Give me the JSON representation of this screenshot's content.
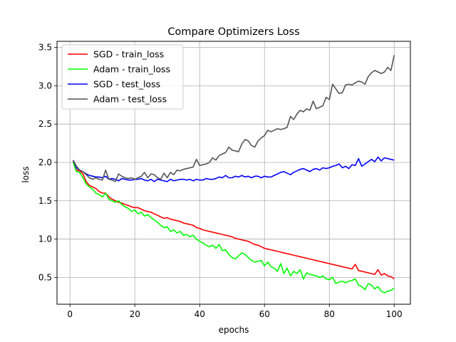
{
  "chart_data": {
    "type": "line",
    "title": "Compare Optimizers Loss",
    "xlabel": "epochs",
    "ylabel": "loss",
    "xlim": [
      -4,
      105
    ],
    "ylim": [
      0.15,
      3.58
    ],
    "xticks": [
      0,
      20,
      40,
      60,
      80,
      100
    ],
    "xtick_labels": [
      "0",
      "20",
      "40",
      "60",
      "80",
      "100"
    ],
    "yticks": [
      0.5,
      1.0,
      1.5,
      2.0,
      2.5,
      3.0,
      3.5
    ],
    "ytick_labels": [
      "0.5",
      "1.0",
      "1.5",
      "2.0",
      "2.5",
      "3.0",
      "3.5"
    ],
    "grid": true,
    "legend_position": "top-left",
    "x_start": 1,
    "x_end": 100,
    "series": [
      {
        "name": "SGD - train_loss",
        "color": "#ff0000",
        "values": [
          2.02,
          1.9,
          1.89,
          1.85,
          1.75,
          1.7,
          1.68,
          1.66,
          1.62,
          1.6,
          1.6,
          1.55,
          1.52,
          1.5,
          1.48,
          1.47,
          1.45,
          1.44,
          1.42,
          1.41,
          1.41,
          1.39,
          1.37,
          1.36,
          1.35,
          1.33,
          1.31,
          1.29,
          1.27,
          1.28,
          1.26,
          1.25,
          1.24,
          1.23,
          1.21,
          1.2,
          1.19,
          1.18,
          1.15,
          1.14,
          1.12,
          1.11,
          1.1,
          1.09,
          1.08,
          1.07,
          1.06,
          1.05,
          1.04,
          1.03,
          1.01,
          1.0,
          0.99,
          0.98,
          0.97,
          0.95,
          0.93,
          0.92,
          0.9,
          0.88,
          0.87,
          0.86,
          0.85,
          0.84,
          0.83,
          0.82,
          0.81,
          0.8,
          0.79,
          0.78,
          0.77,
          0.76,
          0.75,
          0.74,
          0.73,
          0.72,
          0.71,
          0.7,
          0.69,
          0.68,
          0.67,
          0.66,
          0.65,
          0.64,
          0.63,
          0.62,
          0.61,
          0.67,
          0.59,
          0.58,
          0.57,
          0.56,
          0.55,
          0.54,
          0.6,
          0.53,
          0.55,
          0.52,
          0.51,
          0.48
        ]
      },
      {
        "name": "Adam - train_loss",
        "color": "#00ff00",
        "values": [
          2.0,
          1.88,
          1.87,
          1.8,
          1.72,
          1.68,
          1.65,
          1.6,
          1.58,
          1.55,
          1.6,
          1.52,
          1.5,
          1.48,
          1.5,
          1.45,
          1.42,
          1.4,
          1.36,
          1.38,
          1.33,
          1.35,
          1.3,
          1.32,
          1.28,
          1.25,
          1.22,
          1.18,
          1.15,
          1.16,
          1.1,
          1.12,
          1.08,
          1.1,
          1.05,
          1.06,
          1.03,
          1.05,
          1.0,
          0.97,
          0.95,
          0.92,
          0.9,
          0.92,
          0.88,
          0.93,
          0.85,
          0.86,
          0.8,
          0.76,
          0.74,
          0.78,
          0.82,
          0.8,
          0.76,
          0.72,
          0.7,
          0.71,
          0.72,
          0.65,
          0.7,
          0.64,
          0.62,
          0.58,
          0.68,
          0.55,
          0.62,
          0.52,
          0.58,
          0.55,
          0.6,
          0.48,
          0.56,
          0.54,
          0.53,
          0.52,
          0.5,
          0.52,
          0.48,
          0.47,
          0.5,
          0.42,
          0.44,
          0.45,
          0.43,
          0.45,
          0.46,
          0.48,
          0.4,
          0.38,
          0.34,
          0.42,
          0.4,
          0.35,
          0.38,
          0.32,
          0.3,
          0.32,
          0.33,
          0.36
        ]
      },
      {
        "name": "SGD - test_loss",
        "color": "#0000ff",
        "values": [
          2.03,
          1.93,
          1.9,
          1.88,
          1.85,
          1.83,
          1.82,
          1.81,
          1.81,
          1.8,
          1.82,
          1.78,
          1.79,
          1.78,
          1.76,
          1.79,
          1.78,
          1.77,
          1.77,
          1.78,
          1.78,
          1.79,
          1.77,
          1.76,
          1.78,
          1.75,
          1.78,
          1.77,
          1.76,
          1.75,
          1.78,
          1.76,
          1.77,
          1.78,
          1.78,
          1.77,
          1.78,
          1.76,
          1.78,
          1.77,
          1.77,
          1.79,
          1.78,
          1.78,
          1.79,
          1.81,
          1.8,
          1.83,
          1.8,
          1.8,
          1.82,
          1.81,
          1.83,
          1.81,
          1.82,
          1.8,
          1.82,
          1.82,
          1.8,
          1.82,
          1.81,
          1.81,
          1.83,
          1.85,
          1.87,
          1.88,
          1.86,
          1.84,
          1.87,
          1.89,
          1.91,
          1.92,
          1.9,
          1.88,
          1.91,
          1.92,
          1.9,
          1.93,
          1.92,
          1.93,
          1.95,
          1.96,
          1.98,
          1.93,
          1.95,
          1.92,
          1.97,
          1.96,
          2.05,
          1.95,
          1.98,
          2.01,
          2.04,
          2.01,
          2.07,
          2.02,
          2.06,
          2.05,
          2.04,
          2.03
        ]
      },
      {
        "name": "Adam - test_loss",
        "color": "#555555",
        "values": [
          2.03,
          1.95,
          1.9,
          1.88,
          1.84,
          1.8,
          1.78,
          1.8,
          1.78,
          1.77,
          1.9,
          1.78,
          1.77,
          1.75,
          1.85,
          1.82,
          1.8,
          1.79,
          1.8,
          1.78,
          1.8,
          1.82,
          1.87,
          1.8,
          1.85,
          1.84,
          1.8,
          1.78,
          1.86,
          1.8,
          1.87,
          1.84,
          1.9,
          1.89,
          1.91,
          1.92,
          1.93,
          1.94,
          2.04,
          1.96,
          1.97,
          1.98,
          2.0,
          2.06,
          2.03,
          2.09,
          2.11,
          2.13,
          2.2,
          2.16,
          2.15,
          2.14,
          2.24,
          2.3,
          2.28,
          2.22,
          2.2,
          2.28,
          2.32,
          2.35,
          2.42,
          2.4,
          2.42,
          2.44,
          2.43,
          2.44,
          2.46,
          2.6,
          2.56,
          2.63,
          2.68,
          2.66,
          2.7,
          2.68,
          2.8,
          2.7,
          2.72,
          2.74,
          2.85,
          2.82,
          3.02,
          2.96,
          2.9,
          2.91,
          3.01,
          3.02,
          3.01,
          3.04,
          3.06,
          3.05,
          3.02,
          3.12,
          3.17,
          3.2,
          3.18,
          3.16,
          3.18,
          3.24,
          3.2,
          3.4
        ]
      }
    ]
  }
}
